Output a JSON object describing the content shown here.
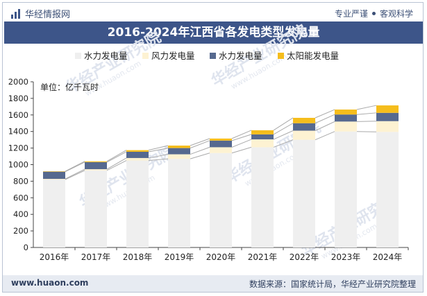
{
  "header": {
    "brand": "华经情报网",
    "slogan_left": "专业严谨",
    "slogan_right": "客观科学"
  },
  "title": "2016-2024年江西省各发电类型发电量",
  "footer": {
    "site": "www.huaon.com",
    "source": "数据来源：国家统计局，华经产业研究院整理"
  },
  "watermark": "华经产业研究院",
  "watermark_url": "www.huaon.com",
  "colors": {
    "header_bg": "#3d5589",
    "footer_bg": "#e7ebf2",
    "series": [
      "#efefef",
      "#fdf2d2",
      "#56698f",
      "#f5bd1c"
    ]
  },
  "chart_data": {
    "type": "bar",
    "stacked": true,
    "categories": [
      "2016年",
      "2017年",
      "2018年",
      "2019年",
      "2020年",
      "2021年",
      "2022年",
      "2023年",
      "2024年"
    ],
    "series": [
      {
        "name": "水力发电量",
        "values": [
          820,
          930,
          1050,
          1070,
          1140,
          1210,
          1300,
          1400,
          1395
        ]
      },
      {
        "name": "风力发电量",
        "values": [
          8,
          15,
          30,
          55,
          70,
          95,
          110,
          120,
          130
        ]
      },
      {
        "name": "水力发电量",
        "values": [
          87,
          85,
          75,
          75,
          80,
          60,
          90,
          85,
          100
        ]
      },
      {
        "name": "太阳能发电量",
        "values": [
          5,
          10,
          20,
          30,
          25,
          50,
          65,
          60,
          90
        ]
      }
    ],
    "unit_label": "单位：亿千瓦时",
    "ylim": [
      0,
      2000
    ],
    "yticks": [
      0,
      200,
      400,
      600,
      800,
      1000,
      1200,
      1400,
      1600,
      1800,
      2000
    ],
    "grid": false,
    "legend_position": "top",
    "connector_lines": true
  }
}
